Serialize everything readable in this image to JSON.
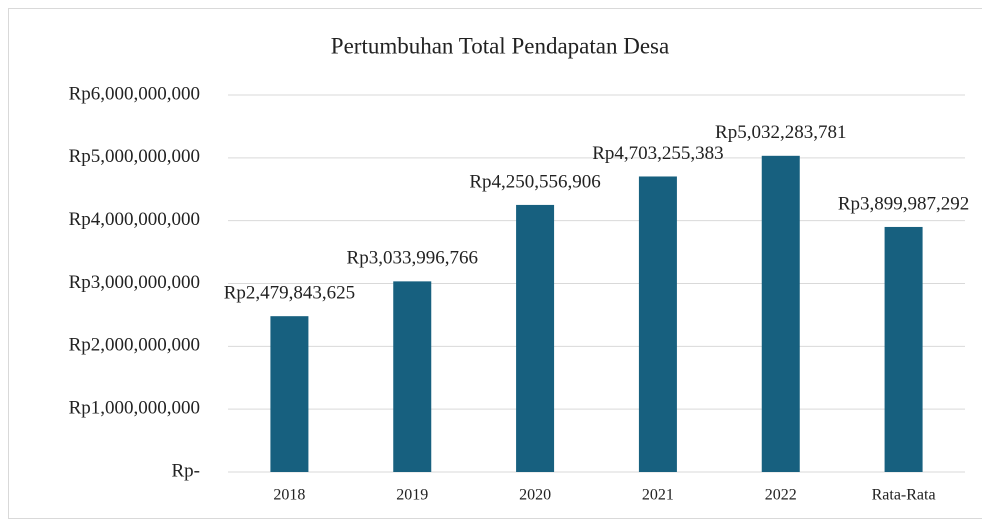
{
  "chart_data": {
    "type": "bar",
    "title": "Pertumbuhan Total Pendapatan Desa",
    "categories": [
      "2018",
      "2019",
      "2020",
      "2021",
      "2022",
      "Rata-Rata"
    ],
    "values": [
      2479843625,
      3033996766,
      4250556906,
      4703255383,
      5032283781,
      3899987292
    ],
    "value_labels": [
      "Rp2,479,843,625",
      "Rp3,033,996,766",
      "Rp4,250,556,906",
      "Rp4,703,255,383",
      "Rp5,032,283,781",
      "Rp3,899,987,292"
    ],
    "color": "#17607f",
    "ylim": [
      0,
      6000000000
    ],
    "yticks": [
      {
        "value": 0,
        "label": "Rp-"
      },
      {
        "value": 1000000000,
        "label": "Rp1,000,000,000"
      },
      {
        "value": 2000000000,
        "label": "Rp2,000,000,000"
      },
      {
        "value": 3000000000,
        "label": "Rp3,000,000,000"
      },
      {
        "value": 4000000000,
        "label": "Rp4,000,000,000"
      },
      {
        "value": 5000000000,
        "label": "Rp5,000,000,000"
      },
      {
        "value": 6000000000,
        "label": "Rp6,000,000,000"
      }
    ],
    "grid": true
  }
}
